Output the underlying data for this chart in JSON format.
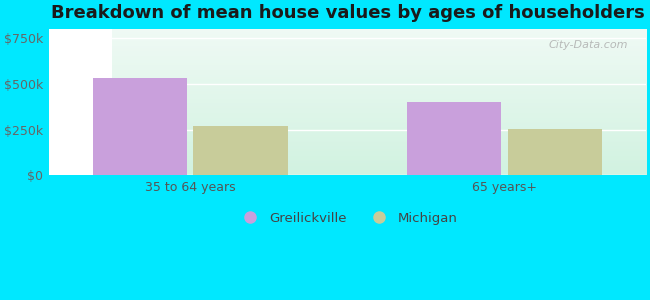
{
  "title": "Breakdown of mean house values by ages of householders",
  "categories": [
    "35 to 64 years",
    "65 years+"
  ],
  "greilickville_values": [
    535000,
    400000
  ],
  "michigan_values": [
    270000,
    255000
  ],
  "greilickville_color": "#c9a0dc",
  "michigan_color": "#c8cc9a",
  "yticks": [
    0,
    250000,
    500000,
    750000
  ],
  "ytick_labels": [
    "$0",
    "$250k",
    "$500k",
    "$750k"
  ],
  "ylim": [
    0,
    800000
  ],
  "legend_greilickville": "Greilickville",
  "legend_michigan": "Michigan",
  "background_outer": "#00e8ff",
  "watermark": "City-Data.com",
  "bar_width": 0.6,
  "title_fontsize": 13
}
